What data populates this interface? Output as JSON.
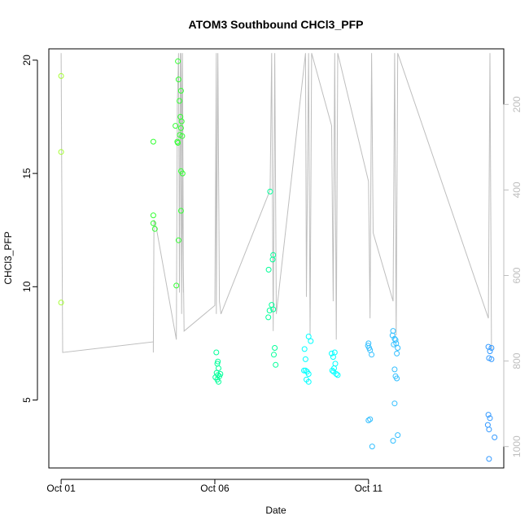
{
  "chart_data": {
    "type": "scatter",
    "title": "ATOM3 Southbound CHCl3_PFP",
    "xlabel": "Date",
    "ylabel": "CHCl3_PFP",
    "x_ticks": [
      {
        "label": "Oct 01",
        "day": 0
      },
      {
        "label": "Oct 06",
        "day": 5
      },
      {
        "label": "Oct 11",
        "day": 10
      }
    ],
    "y_ticks": [
      "5",
      "10",
      "15",
      "20"
    ],
    "y2_ticks": [
      "200",
      "400",
      "600",
      "800",
      "1000"
    ],
    "xlim": [
      -0.4,
      14.4
    ],
    "ylim": [
      2.0,
      20.5
    ],
    "y2lim": [
      1050,
      70
    ],
    "grid": false,
    "points": [
      {
        "x": 0.0,
        "y": 19.3
      },
      {
        "x": 0.0,
        "y": 15.95
      },
      {
        "x": 0.0,
        "y": 9.3
      },
      {
        "x": 3.0,
        "y": 16.4
      },
      {
        "x": 3.0,
        "y": 13.15
      },
      {
        "x": 3.0,
        "y": 12.8
      },
      {
        "x": 3.05,
        "y": 12.55
      },
      {
        "x": 3.75,
        "y": 10.05
      },
      {
        "x": 3.8,
        "y": 19.95
      },
      {
        "x": 3.78,
        "y": 16.4
      },
      {
        "x": 3.82,
        "y": 19.15
      },
      {
        "x": 3.85,
        "y": 18.2
      },
      {
        "x": 3.9,
        "y": 18.65
      },
      {
        "x": 3.88,
        "y": 17.5
      },
      {
        "x": 3.92,
        "y": 17.3
      },
      {
        "x": 3.9,
        "y": 17.0
      },
      {
        "x": 3.86,
        "y": 16.7
      },
      {
        "x": 3.94,
        "y": 16.65
      },
      {
        "x": 3.8,
        "y": 16.35
      },
      {
        "x": 3.9,
        "y": 15.1
      },
      {
        "x": 3.95,
        "y": 15.0
      },
      {
        "x": 3.9,
        "y": 13.35
      },
      {
        "x": 3.82,
        "y": 12.05
      },
      {
        "x": 3.72,
        "y": 17.1
      },
      {
        "x": 5.05,
        "y": 7.1
      },
      {
        "x": 5.1,
        "y": 6.7
      },
      {
        "x": 5.08,
        "y": 6.6
      },
      {
        "x": 5.12,
        "y": 6.4
      },
      {
        "x": 5.06,
        "y": 6.2
      },
      {
        "x": 5.1,
        "y": 6.1
      },
      {
        "x": 5.15,
        "y": 6.05
      },
      {
        "x": 5.02,
        "y": 6.0
      },
      {
        "x": 5.08,
        "y": 5.9
      },
      {
        "x": 5.12,
        "y": 5.8
      },
      {
        "x": 5.18,
        "y": 6.15
      },
      {
        "x": 6.8,
        "y": 14.2
      },
      {
        "x": 6.9,
        "y": 11.4
      },
      {
        "x": 6.88,
        "y": 11.2
      },
      {
        "x": 6.75,
        "y": 10.75
      },
      {
        "x": 6.85,
        "y": 9.2
      },
      {
        "x": 6.78,
        "y": 8.95
      },
      {
        "x": 6.9,
        "y": 9.0
      },
      {
        "x": 6.74,
        "y": 8.65
      },
      {
        "x": 6.95,
        "y": 7.3
      },
      {
        "x": 6.92,
        "y": 7.0
      },
      {
        "x": 6.98,
        "y": 6.55
      },
      {
        "x": 7.92,
        "y": 7.25
      },
      {
        "x": 8.05,
        "y": 7.8
      },
      {
        "x": 8.12,
        "y": 7.6
      },
      {
        "x": 7.95,
        "y": 6.8
      },
      {
        "x": 7.95,
        "y": 6.3
      },
      {
        "x": 8.0,
        "y": 6.25
      },
      {
        "x": 8.05,
        "y": 6.15
      },
      {
        "x": 7.98,
        "y": 5.9
      },
      {
        "x": 8.05,
        "y": 5.8
      },
      {
        "x": 7.9,
        "y": 6.3
      },
      {
        "x": 8.8,
        "y": 7.05
      },
      {
        "x": 8.9,
        "y": 7.1
      },
      {
        "x": 8.85,
        "y": 6.9
      },
      {
        "x": 8.92,
        "y": 6.6
      },
      {
        "x": 8.88,
        "y": 6.4
      },
      {
        "x": 8.82,
        "y": 6.3
      },
      {
        "x": 8.86,
        "y": 6.25
      },
      {
        "x": 8.95,
        "y": 6.15
      },
      {
        "x": 9.0,
        "y": 6.1
      },
      {
        "x": 10.0,
        "y": 7.5
      },
      {
        "x": 9.98,
        "y": 7.4
      },
      {
        "x": 10.02,
        "y": 7.3
      },
      {
        "x": 10.05,
        "y": 7.2
      },
      {
        "x": 10.1,
        "y": 7.0
      },
      {
        "x": 10.0,
        "y": 4.1
      },
      {
        "x": 10.05,
        "y": 4.15
      },
      {
        "x": 10.12,
        "y": 2.95
      },
      {
        "x": 10.8,
        "y": 8.05
      },
      {
        "x": 10.78,
        "y": 7.85
      },
      {
        "x": 10.85,
        "y": 7.7
      },
      {
        "x": 10.9,
        "y": 7.5
      },
      {
        "x": 10.82,
        "y": 7.45
      },
      {
        "x": 10.95,
        "y": 7.3
      },
      {
        "x": 10.92,
        "y": 7.05
      },
      {
        "x": 10.88,
        "y": 7.65
      },
      {
        "x": 10.85,
        "y": 6.35
      },
      {
        "x": 10.88,
        "y": 6.05
      },
      {
        "x": 10.92,
        "y": 5.95
      },
      {
        "x": 10.85,
        "y": 4.85
      },
      {
        "x": 10.95,
        "y": 3.45
      },
      {
        "x": 10.8,
        "y": 3.2
      },
      {
        "x": 13.9,
        "y": 7.35
      },
      {
        "x": 13.95,
        "y": 7.15
      },
      {
        "x": 14.0,
        "y": 7.3
      },
      {
        "x": 13.92,
        "y": 6.85
      },
      {
        "x": 14.0,
        "y": 6.8
      },
      {
        "x": 13.9,
        "y": 4.35
      },
      {
        "x": 13.95,
        "y": 4.2
      },
      {
        "x": 13.88,
        "y": 3.9
      },
      {
        "x": 13.92,
        "y": 3.7
      },
      {
        "x": 14.1,
        "y": 3.35
      },
      {
        "x": 13.92,
        "y": 2.4
      }
    ],
    "color_scale": [
      "#A6FF33",
      "#33FF33",
      "#00FF99",
      "#00FFFF",
      "#33BFFF",
      "#3399FF"
    ],
    "altitude_series": {
      "name": "",
      "color": "#BEBEBE",
      "x": [
        0.0,
        0.0,
        0.05,
        3.0,
        3.0,
        3.02,
        3.1,
        3.75,
        3.78,
        3.82,
        3.85,
        3.88,
        3.92,
        3.95,
        3.98,
        3.9,
        4.0,
        5.0,
        5.05,
        5.05,
        5.1,
        5.12,
        5.15,
        5.2,
        6.8,
        6.85,
        6.9,
        6.95,
        7.0,
        7.95,
        7.98,
        8.05,
        8.1,
        8.15,
        8.8,
        8.85,
        8.9,
        8.95,
        9.0,
        10.0,
        10.05,
        10.1,
        10.15,
        10.8,
        10.85,
        10.9,
        10.95,
        13.9,
        13.95,
        14.0,
        14.05
      ],
      "y": [
        80,
        80,
        780,
        755,
        780,
        470,
        490,
        750,
        200,
        80,
        640,
        80,
        690,
        80,
        640,
        80,
        730,
        670,
        80,
        690,
        80,
        330,
        660,
        690,
        400,
        80,
        730,
        80,
        690,
        80,
        650,
        80,
        740,
        80,
        250,
        660,
        80,
        750,
        80,
        380,
        700,
        80,
        500,
        660,
        80,
        740,
        80,
        700,
        80,
        770,
        770
      ]
    }
  }
}
